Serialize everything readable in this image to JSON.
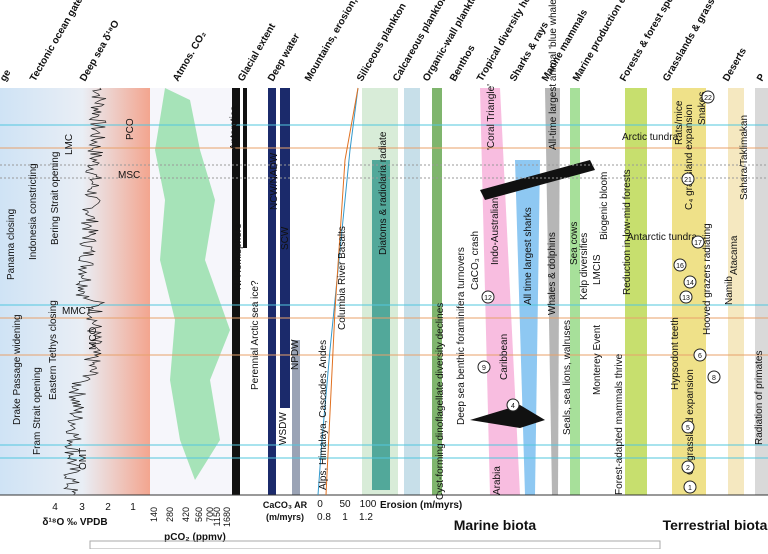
{
  "headers": [
    "ge",
    "Tectonic ocean gateways",
    "Deep sea δ¹⁸O",
    "Atmos. CO₂",
    "Glacial extent",
    "Deep water",
    "Mountains, erosion, volcanism",
    "Siliceous plankton",
    "Calcareous plankton",
    "Organic-wall plankton",
    "Benthos",
    "Tropical diversity hotspots",
    "Sharks & rays",
    "Marine mammals",
    "Marine production events",
    "Forests & forest specialists",
    "Grasslands & grassland specialists",
    "Deserts",
    "P"
  ],
  "labels": [
    "PCO",
    "MSC",
    "LMC",
    "MMCT",
    "MCO",
    "OMT",
    "Panama closing",
    "Indonesia constricting",
    "Bering Strait opening",
    "Drake Passage widening",
    "Fram Strait opening",
    "Eastern Tethys closing",
    "Antarctica",
    "N. Hemisphere",
    "Perennial Arctic sea ice?",
    "NCW/NADW",
    "SCW",
    "NPDW",
    "WSDW",
    "Alps, Himalaya, Cascades, Andes",
    "Columbia River Basalts",
    "Diatoms & radiolaria radiate",
    "Cyst-forming dinoflagellate diversity declines",
    "Deep sea benthic foraminifera turnovers",
    "'Coral Triangle'",
    "Indo-Australian",
    "CaCO₃ crash",
    "Caribbean",
    "Arabia",
    "All time largest sharks",
    "All-time largest animal 'blue whale'",
    "Whales & dolphins",
    "Seals, sea lions, walruses",
    "Sea cows",
    "Kelp diversifies",
    "LMCIS",
    "Biogenic bloom",
    "Monterey Event",
    "Arctic tundra",
    "Antarctic tundra",
    "Reduction in low-mid forests",
    "Forest-adapted mammals thrive",
    "C₄ grassland expansion",
    "Rats/mice",
    "Snakes",
    "Hooved grazers radiating",
    "Hypsodont teeth",
    "C₃ grassland expansion",
    "Atacama",
    "Sahara/Taklimakan",
    "Namib",
    "Radiation of primates"
  ],
  "markers": [
    "22",
    "21",
    "17",
    "16",
    "14",
    "13",
    "12",
    "9",
    "8",
    "6",
    "5",
    "4",
    "2",
    "1"
  ],
  "axes": {
    "d18o_ticks": [
      "4",
      "3",
      "2",
      "1"
    ],
    "d18o_label": "δ¹⁸O ‰ VPDB",
    "co2_ticks": [
      "140",
      "280",
      "420",
      "560",
      "700",
      "1150",
      "1680"
    ],
    "co2_label": "pCO₂ (ppmv)",
    "erosion_ticks": [
      "0",
      "50",
      "100"
    ],
    "caco3_label": "CaCO₃ AR",
    "caco3_unit": "(m/myrs)",
    "caco3_ticks": [
      "0.8",
      "1",
      "1.2"
    ],
    "erosion_label": "Erosion (m/myrs)"
  },
  "footer": [
    "Marine biota",
    "Terrestrial biota"
  ]
}
